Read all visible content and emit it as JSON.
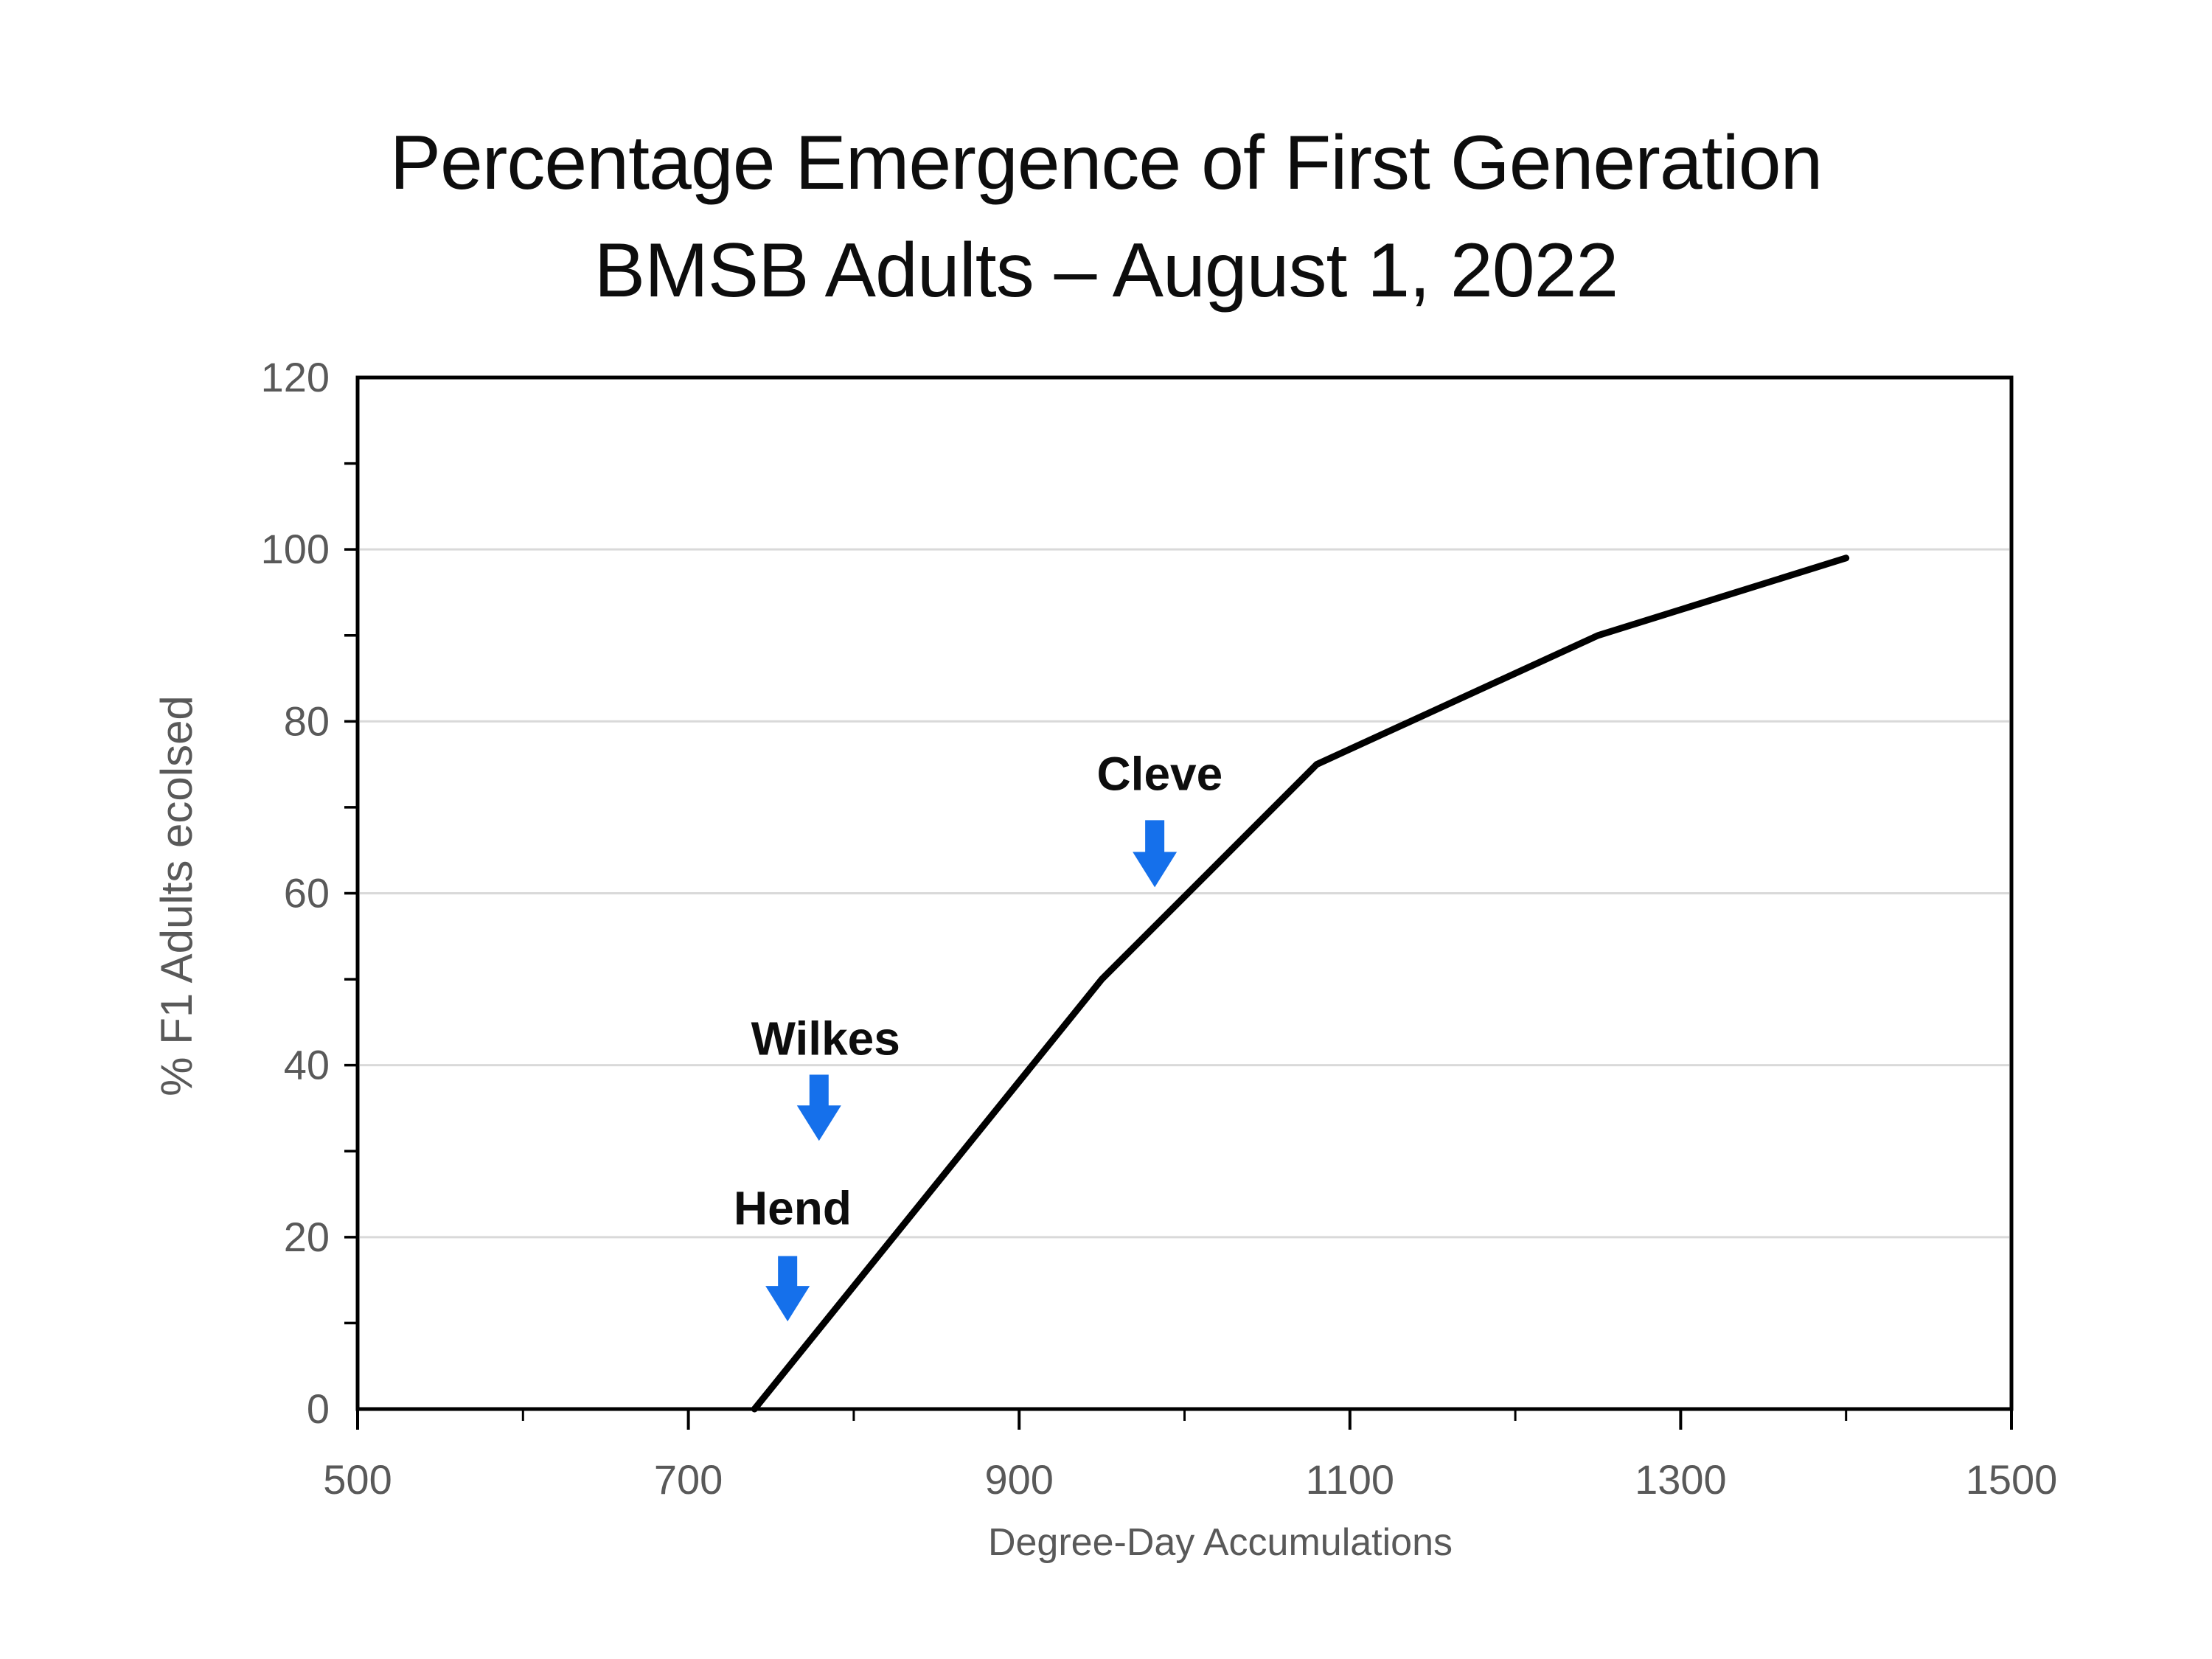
{
  "title": {
    "line1": "Percentage Emergence of First Generation",
    "line2": "BMSB Adults – August 1, 2022"
  },
  "chart_data": {
    "type": "line",
    "title": "Percentage Emergence of First Generation BMSB Adults – August 1, 2022",
    "xlabel": "Degree-Day Accumulations",
    "ylabel": "% F1 Adults ecolsed",
    "xlim": [
      500,
      1500
    ],
    "ylim": [
      0,
      120
    ],
    "x_major_ticks": [
      500,
      700,
      900,
      1100,
      1300,
      1500
    ],
    "x_minor_ticks": [
      600,
      800,
      1000,
      1200,
      1400
    ],
    "x_tick_labels": [
      "500",
      "700",
      "900",
      "1100",
      "1300",
      "1500"
    ],
    "y_major_ticks": [
      0,
      20,
      40,
      60,
      80,
      100,
      120
    ],
    "y_tick_labels": [
      "0",
      "20",
      "40",
      "60",
      "80",
      "100",
      "120"
    ],
    "y_minor_ticks": [
      10,
      20,
      30,
      40,
      50,
      60,
      70,
      80,
      90,
      100,
      110
    ],
    "y_gridlines": [
      20,
      40,
      60,
      80,
      100
    ],
    "grid_on": true,
    "legend_position": "none",
    "grid_color": "#d9d9d9",
    "axis_color": "#000000",
    "tick_label_color": "#595959",
    "annotation_color": "#1570eb",
    "series": [
      {
        "name": "% F1 adults eclosed",
        "color": "#000000",
        "points": [
          [
            740,
            0
          ],
          [
            950,
            50
          ],
          [
            1080,
            75
          ],
          [
            1250,
            90
          ],
          [
            1400,
            99
          ]
        ]
      }
    ],
    "annotations": [
      {
        "label": "Hend",
        "label_x": 763,
        "label_bottom": 21.5,
        "arrow_x": 760,
        "arrow_top": 17.8,
        "arrow_tip": 10.2
      },
      {
        "label": "Wilkes",
        "label_x": 783,
        "label_bottom": 41.2,
        "arrow_x": 779,
        "arrow_top": 38.9,
        "arrow_tip": 31.2
      },
      {
        "label": "Cleve",
        "label_x": 985,
        "label_bottom": 72.0,
        "arrow_x": 982,
        "arrow_top": 68.5,
        "arrow_tip": 60.7
      }
    ]
  }
}
